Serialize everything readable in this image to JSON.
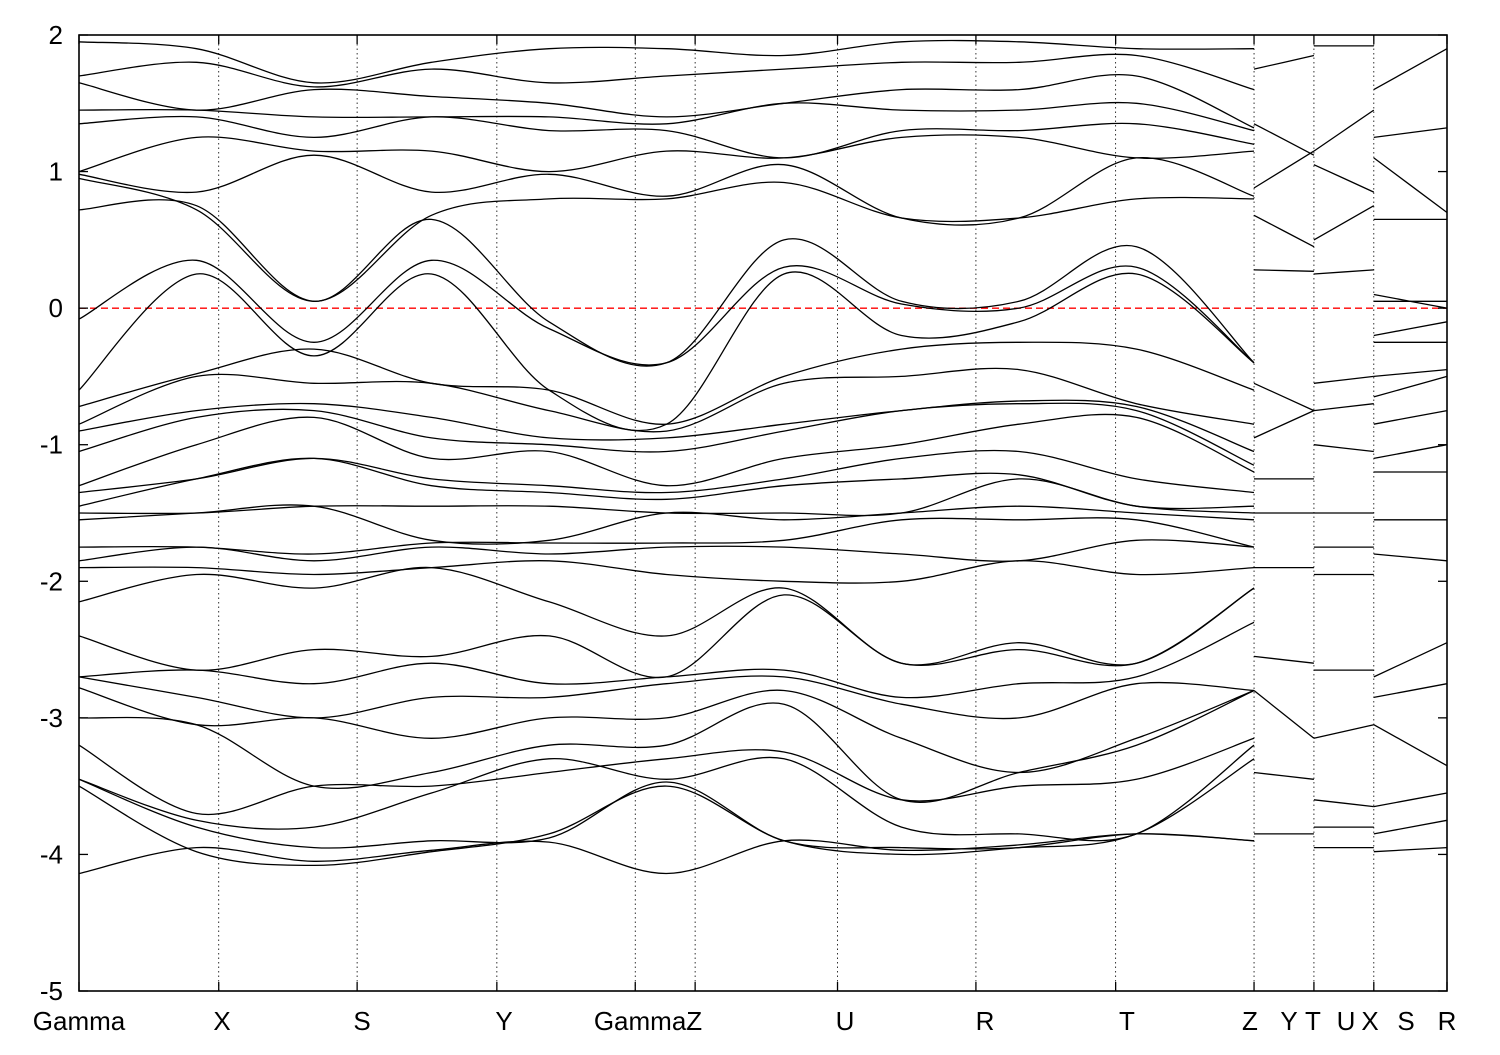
{
  "chart_data": {
    "type": "line",
    "title": "",
    "xlabel": "",
    "ylabel": "",
    "ylim": [
      -5,
      2
    ],
    "y_ticks": [
      2,
      1,
      0,
      -1,
      -2,
      -3,
      -4,
      -5
    ],
    "y_tick_labels": [
      "2",
      "1",
      "0",
      "-1",
      "-2",
      "-3",
      "-4",
      "-5"
    ],
    "x_range": [
      0,
      10.28
    ],
    "k_points": [
      {
        "label": "Gamma",
        "x": 0.0
      },
      {
        "label": "X",
        "x": 1.05
      },
      {
        "label": "S",
        "x": 2.09
      },
      {
        "label": "Y",
        "x": 3.14
      },
      {
        "label": "Gamma",
        "x": 4.18
      },
      {
        "label": "Z",
        "x": 4.63
      },
      {
        "label": "U",
        "x": 5.7
      },
      {
        "label": "R",
        "x": 6.74
      },
      {
        "label": "T",
        "x": 7.79
      },
      {
        "label": "Z",
        "x": 8.83
      },
      {
        "label": "Y",
        "x": 8.83
      },
      {
        "label": "T",
        "x": 9.28
      },
      {
        "label": "U",
        "x": 9.28
      },
      {
        "label": "X",
        "x": 9.73
      },
      {
        "label": "S",
        "x": 9.73
      },
      {
        "label": "R",
        "x": 10.28
      }
    ],
    "tick_label_texts": [
      "Gamma",
      "X",
      "S",
      "Y",
      "GammaZ",
      "U",
      "R",
      "T",
      "Z",
      "Y",
      "T",
      "U",
      "X",
      "S",
      "R"
    ],
    "fermi_level": 0,
    "fermi_color": "#ff0000",
    "band_color": "#000000",
    "grid": "vertical dotted at high-symmetry points",
    "segments": [
      {
        "x_start": 0.0,
        "x_end": 8.83,
        "bands": [
          [
            -4.14,
            -3.95,
            -4.05,
            -3.97,
            -3.91,
            -4.14,
            -3.9,
            -3.97,
            -3.93,
            -3.85,
            -3.9
          ],
          [
            -3.5,
            -3.98,
            -4.08,
            -3.98,
            -3.85,
            -3.5,
            -3.9,
            -4.0,
            -3.95,
            -3.85,
            -3.9
          ],
          [
            -3.45,
            -3.8,
            -3.95,
            -3.9,
            -3.88,
            -3.47,
            -3.9,
            -3.95,
            -3.95,
            -3.85,
            -3.3
          ],
          [
            -3.45,
            -3.75,
            -3.8,
            -3.55,
            -3.3,
            -3.45,
            -3.3,
            -3.8,
            -3.85,
            -3.85,
            -3.2
          ],
          [
            -3.2,
            -3.7,
            -3.5,
            -3.5,
            -3.4,
            -3.3,
            -3.25,
            -3.6,
            -3.5,
            -3.45,
            -3.15
          ],
          [
            -3.0,
            -3.05,
            -3.5,
            -3.4,
            -3.2,
            -3.2,
            -2.9,
            -3.6,
            -3.4,
            -3.2,
            -2.8
          ],
          [
            -2.78,
            -3.05,
            -3.0,
            -3.15,
            -3.0,
            -3.0,
            -2.8,
            -3.15,
            -3.4,
            -3.15,
            -2.8
          ],
          [
            -2.7,
            -2.85,
            -3.0,
            -2.85,
            -2.85,
            -2.75,
            -2.7,
            -2.9,
            -3.0,
            -2.75,
            -2.8
          ],
          [
            -2.7,
            -2.65,
            -2.75,
            -2.6,
            -2.75,
            -2.7,
            -2.65,
            -2.85,
            -2.75,
            -2.7,
            -2.3
          ],
          [
            -2.4,
            -2.65,
            -2.5,
            -2.55,
            -2.4,
            -2.7,
            -2.1,
            -2.6,
            -2.5,
            -2.6,
            -2.05
          ],
          [
            -2.15,
            -1.95,
            -2.05,
            -1.9,
            -2.15,
            -2.4,
            -2.05,
            -2.6,
            -2.45,
            -2.6,
            -2.05
          ],
          [
            -1.9,
            -1.9,
            -1.95,
            -1.9,
            -1.85,
            -1.95,
            -2.0,
            -2.0,
            -1.85,
            -1.95,
            -1.9
          ],
          [
            -1.85,
            -1.75,
            -1.85,
            -1.75,
            -1.8,
            -1.75,
            -1.75,
            -1.8,
            -1.85,
            -1.7,
            -1.75
          ],
          [
            -1.75,
            -1.75,
            -1.8,
            -1.72,
            -1.72,
            -1.72,
            -1.7,
            -1.55,
            -1.55,
            -1.55,
            -1.75
          ],
          [
            -1.55,
            -1.5,
            -1.45,
            -1.7,
            -1.7,
            -1.5,
            -1.55,
            -1.5,
            -1.45,
            -1.5,
            -1.55
          ],
          [
            -1.5,
            -1.5,
            -1.45,
            -1.45,
            -1.45,
            -1.5,
            -1.5,
            -1.5,
            -1.25,
            -1.45,
            -1.5
          ],
          [
            -1.45,
            -1.25,
            -1.1,
            -1.3,
            -1.35,
            -1.4,
            -1.3,
            -1.25,
            -1.22,
            -1.45,
            -1.45
          ],
          [
            -1.35,
            -1.25,
            -1.1,
            -1.25,
            -1.3,
            -1.35,
            -1.25,
            -1.1,
            -1.05,
            -1.25,
            -1.35
          ],
          [
            -1.3,
            -1.0,
            -0.8,
            -1.1,
            -1.05,
            -1.3,
            -1.1,
            -1.0,
            -0.85,
            -0.8,
            -1.2
          ],
          [
            -1.05,
            -0.8,
            -0.75,
            -0.95,
            -1.0,
            -1.05,
            -0.9,
            -0.75,
            -0.7,
            -0.75,
            -1.15
          ],
          [
            -0.9,
            -0.75,
            -0.7,
            -0.8,
            -0.95,
            -0.95,
            -0.85,
            -0.75,
            -0.68,
            -0.72,
            -1.05
          ],
          [
            -0.85,
            -0.5,
            -0.55,
            -0.55,
            -0.75,
            -0.9,
            -0.55,
            -0.5,
            -0.45,
            -0.7,
            -0.85
          ],
          [
            -0.72,
            -0.48,
            -0.3,
            -0.55,
            -0.6,
            -0.85,
            -0.5,
            -0.3,
            -0.25,
            -0.3,
            -0.6
          ],
          [
            -0.6,
            0.25,
            -0.35,
            0.25,
            -0.6,
            -0.85,
            0.25,
            -0.2,
            -0.1,
            0.25,
            -0.4
          ],
          [
            -0.08,
            0.35,
            -0.25,
            0.35,
            -0.15,
            -0.4,
            0.3,
            0.03,
            0.0,
            0.3,
            -0.4
          ],
          [
            0.72,
            0.75,
            0.05,
            0.65,
            -0.1,
            -0.4,
            0.5,
            0.05,
            0.05,
            0.45,
            -0.4
          ],
          [
            0.95,
            0.72,
            0.05,
            0.68,
            0.8,
            0.8,
            0.92,
            0.66,
            0.66,
            0.8,
            0.8
          ],
          [
            0.98,
            0.85,
            1.12,
            0.85,
            0.98,
            0.82,
            1.05,
            0.66,
            0.66,
            1.1,
            0.82
          ],
          [
            1.0,
            1.25,
            1.15,
            1.15,
            1.0,
            1.15,
            1.1,
            1.25,
            1.25,
            1.1,
            1.15
          ],
          [
            1.35,
            1.4,
            1.25,
            1.4,
            1.3,
            1.3,
            1.1,
            1.3,
            1.3,
            1.35,
            1.2
          ],
          [
            1.45,
            1.45,
            1.4,
            1.4,
            1.4,
            1.35,
            1.5,
            1.45,
            1.45,
            1.5,
            1.3
          ],
          [
            1.65,
            1.45,
            1.6,
            1.55,
            1.5,
            1.4,
            1.5,
            1.6,
            1.6,
            1.7,
            1.32
          ],
          [
            1.7,
            1.8,
            1.62,
            1.75,
            1.65,
            1.7,
            1.75,
            1.8,
            1.8,
            1.85,
            1.6
          ],
          [
            1.95,
            1.9,
            1.65,
            1.8,
            1.9,
            1.9,
            1.85,
            1.95,
            1.95,
            1.9,
            1.9
          ]
        ]
      },
      {
        "x_start": 8.83,
        "x_end": 9.28,
        "bands": [
          [
            -3.85,
            -3.85
          ],
          [
            -3.4,
            -3.45
          ],
          [
            -2.8,
            -3.15
          ],
          [
            -2.55,
            -2.6
          ],
          [
            -1.9,
            -1.9
          ],
          [
            -1.5,
            -1.5
          ],
          [
            -1.25,
            -1.25
          ],
          [
            -0.95,
            -0.75
          ],
          [
            -0.55,
            -0.75
          ],
          [
            0.28,
            0.27
          ],
          [
            0.68,
            0.45
          ],
          [
            0.88,
            1.15
          ],
          [
            1.35,
            1.12
          ],
          [
            1.75,
            1.85
          ]
        ]
      },
      {
        "x_start": 9.28,
        "x_end": 9.73,
        "bands": [
          [
            -3.95,
            -3.95
          ],
          [
            -3.8,
            -3.8
          ],
          [
            -3.6,
            -3.65
          ],
          [
            -3.15,
            -3.05
          ],
          [
            -2.65,
            -2.65
          ],
          [
            -1.95,
            -1.95
          ],
          [
            -1.75,
            -1.75
          ],
          [
            -1.5,
            -1.5
          ],
          [
            -1.0,
            -1.05
          ],
          [
            -0.75,
            -0.7
          ],
          [
            -0.55,
            -0.5
          ],
          [
            0.25,
            0.28
          ],
          [
            0.5,
            0.75
          ],
          [
            1.05,
            0.85
          ],
          [
            1.15,
            1.45
          ],
          [
            1.92,
            1.92
          ]
        ]
      },
      {
        "x_start": 9.73,
        "x_end": 10.28,
        "bands": [
          [
            -3.98,
            -3.95
          ],
          [
            -3.85,
            -3.75
          ],
          [
            -3.65,
            -3.55
          ],
          [
            -3.05,
            -3.35
          ],
          [
            -2.85,
            -2.75
          ],
          [
            -2.7,
            -2.45
          ],
          [
            -1.8,
            -1.85
          ],
          [
            -1.55,
            -1.55
          ],
          [
            -1.2,
            -1.2
          ],
          [
            -1.1,
            -1.0
          ],
          [
            -0.85,
            -0.75
          ],
          [
            -0.65,
            -0.5
          ],
          [
            -0.5,
            -0.45
          ],
          [
            -0.25,
            -0.25
          ],
          [
            -0.2,
            -0.1
          ],
          [
            0.05,
            0.05
          ],
          [
            0.1,
            0.0
          ],
          [
            0.65,
            0.65
          ],
          [
            1.1,
            0.7
          ],
          [
            1.25,
            1.32
          ],
          [
            1.6,
            1.9
          ]
        ]
      }
    ]
  }
}
